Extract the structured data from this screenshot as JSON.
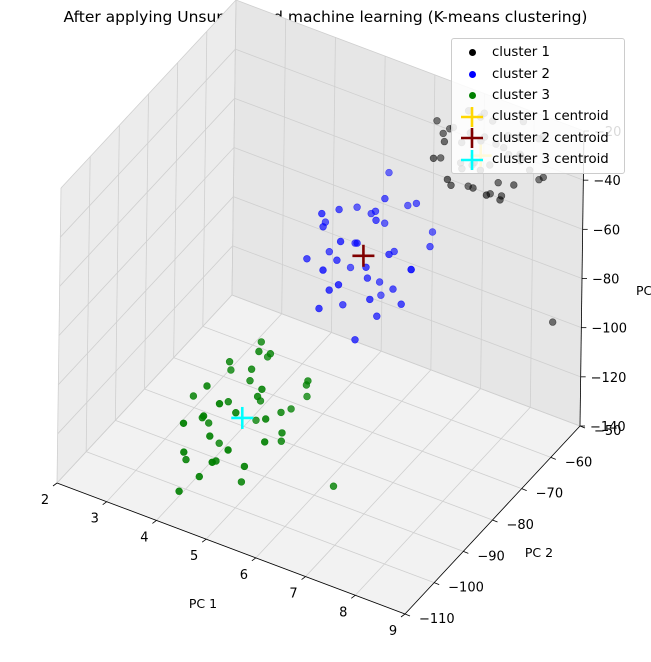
{
  "title": "After applying Unsupervised machine learning (K-means clustering)",
  "chart_data": {
    "type": "scatter",
    "projection": "3d",
    "title": "After applying Unsupervised machine learning (K-means clustering)",
    "xlabel": "PC 1",
    "ylabel": "PC 2",
    "zlabel": "PC",
    "xlim": [
      2,
      9
    ],
    "ylim": [
      -110,
      -50
    ],
    "zlim": [
      -140,
      -20
    ],
    "xticks": [
      "2",
      "3",
      "4",
      "5",
      "6",
      "7",
      "8",
      "9"
    ],
    "yticks": [
      "−50",
      "−60",
      "−70",
      "−80",
      "−90",
      "−100",
      "−110"
    ],
    "zticks": [
      "−20",
      "−40",
      "−60",
      "−80",
      "−100",
      "−120",
      "−140"
    ],
    "legend_position": "top-right",
    "grid": true,
    "series": [
      {
        "name": "cluster 1",
        "marker": "dot",
        "color": "#000000",
        "points": [
          [
            7.1,
            -53,
            -25
          ],
          [
            7.3,
            -55,
            -29
          ],
          [
            7.6,
            -52,
            -30
          ],
          [
            7.8,
            -57,
            -27
          ],
          [
            7.4,
            -58,
            -26
          ],
          [
            7.0,
            -50,
            -28
          ],
          [
            8.0,
            -55,
            -24
          ],
          [
            7.7,
            -60,
            -31
          ],
          [
            6.9,
            -56,
            -33
          ],
          [
            7.5,
            -62,
            -29
          ],
          [
            8.2,
            -58,
            -28
          ],
          [
            7.2,
            -61,
            -35
          ],
          [
            6.8,
            -52,
            -26
          ],
          [
            7.9,
            -53,
            -34
          ],
          [
            8.3,
            -62,
            -32
          ],
          [
            7.0,
            -58,
            -38
          ],
          [
            6.6,
            -55,
            -31
          ],
          [
            7.6,
            -64,
            -36
          ],
          [
            8.1,
            -50,
            -30
          ],
          [
            7.3,
            -51,
            -37
          ],
          [
            6.7,
            -59,
            -27
          ],
          [
            8.4,
            -55,
            -38
          ],
          [
            7.8,
            -65,
            -26
          ],
          [
            7.1,
            -63,
            -40
          ],
          [
            6.5,
            -52,
            -35
          ],
          [
            7.4,
            -54,
            -23
          ],
          [
            8.0,
            -61,
            -40
          ],
          [
            6.9,
            -62,
            -25
          ],
          [
            7.7,
            -57,
            -42
          ],
          [
            8.5,
            -60,
            -27
          ],
          [
            7.2,
            -66,
            -33
          ],
          [
            6.6,
            -58,
            -39
          ],
          [
            7.9,
            -52,
            -22
          ],
          [
            8.2,
            -65,
            -35
          ],
          [
            7.5,
            -50,
            -41
          ],
          [
            6.8,
            -64,
            -30
          ],
          [
            7.0,
            -54,
            -44
          ],
          [
            8.6,
            -57,
            -33
          ],
          [
            7.3,
            -60,
            -21
          ],
          [
            8.3,
            -52,
            -25
          ],
          [
            7.6,
            -58,
            -46
          ],
          [
            6.4,
            -56,
            -28
          ],
          [
            8.1,
            -68,
            -30
          ],
          [
            7.8,
            -51,
            -38
          ],
          [
            7.1,
            -57,
            -48
          ],
          [
            9.0,
            -60,
            -85
          ]
        ]
      },
      {
        "name": "cluster 2",
        "marker": "dot",
        "color": "#0000ff",
        "points": [
          [
            6.0,
            -70,
            -50
          ],
          [
            6.3,
            -75,
            -45
          ],
          [
            5.8,
            -68,
            -55
          ],
          [
            6.5,
            -72,
            -60
          ],
          [
            5.5,
            -74,
            -48
          ],
          [
            6.1,
            -78,
            -52
          ],
          [
            5.9,
            -65,
            -62
          ],
          [
            6.4,
            -80,
            -57
          ],
          [
            5.6,
            -70,
            -66
          ],
          [
            6.7,
            -68,
            -44
          ],
          [
            6.2,
            -76,
            -68
          ],
          [
            5.4,
            -66,
            -58
          ],
          [
            6.0,
            -82,
            -47
          ],
          [
            6.6,
            -74,
            -72
          ],
          [
            5.7,
            -78,
            -62
          ],
          [
            6.3,
            -64,
            -53
          ],
          [
            5.2,
            -72,
            -70
          ],
          [
            6.8,
            -79,
            -50
          ],
          [
            5.9,
            -84,
            -65
          ],
          [
            6.5,
            -66,
            -75
          ],
          [
            5.5,
            -80,
            -42
          ],
          [
            6.1,
            -70,
            -78
          ],
          [
            5.3,
            -76,
            -54
          ],
          [
            6.9,
            -73,
            -63
          ],
          [
            6.2,
            -86,
            -58
          ],
          [
            5.8,
            -62,
            -46
          ],
          [
            6.4,
            -76,
            -82
          ],
          [
            5.0,
            -70,
            -62
          ],
          [
            6.0,
            -88,
            -51
          ],
          [
            6.6,
            -82,
            -66
          ],
          [
            5.4,
            -68,
            -80
          ],
          [
            6.3,
            -72,
            -40
          ],
          [
            5.7,
            -84,
            -74
          ],
          [
            7.1,
            -70,
            -56
          ],
          [
            5.6,
            -74,
            -86
          ],
          [
            6.8,
            -64,
            -60
          ],
          [
            5.1,
            -78,
            -66
          ],
          [
            6.2,
            -80,
            -88
          ],
          [
            7.0,
            -78,
            -70
          ],
          [
            5.9,
            -66,
            -90
          ]
        ]
      },
      {
        "name": "cluster 3",
        "marker": "dot",
        "color": "#008000",
        "points": [
          [
            5.0,
            -95,
            -90
          ],
          [
            5.3,
            -98,
            -95
          ],
          [
            4.8,
            -92,
            -100
          ],
          [
            5.5,
            -100,
            -88
          ],
          [
            4.6,
            -96,
            -105
          ],
          [
            5.1,
            -102,
            -98
          ],
          [
            4.9,
            -90,
            -110
          ],
          [
            5.6,
            -95,
            -103
          ],
          [
            4.4,
            -100,
            -95
          ],
          [
            5.2,
            -92,
            -86
          ],
          [
            4.7,
            -104,
            -108
          ],
          [
            5.4,
            -88,
            -112
          ],
          [
            4.5,
            -94,
            -92
          ],
          [
            5.8,
            -98,
            -106
          ],
          [
            4.3,
            -90,
            -102
          ],
          [
            5.0,
            -106,
            -90
          ],
          [
            5.5,
            -93,
            -118
          ],
          [
            4.2,
            -98,
            -112
          ],
          [
            5.7,
            -102,
            -96
          ],
          [
            4.8,
            -86,
            -98
          ],
          [
            5.3,
            -108,
            -104
          ],
          [
            4.1,
            -94,
            -120
          ],
          [
            5.9,
            -91,
            -93
          ],
          [
            4.6,
            -100,
            -124
          ],
          [
            5.2,
            -96,
            -80
          ],
          [
            4.4,
            -108,
            -100
          ],
          [
            5.6,
            -86,
            -108
          ],
          [
            4.0,
            -100,
            -128
          ],
          [
            5.4,
            -104,
            -115
          ],
          [
            4.9,
            -90,
            -86
          ],
          [
            4.3,
            -106,
            -115
          ],
          [
            5.8,
            -104,
            -102
          ],
          [
            4.7,
            -88,
            -122
          ],
          [
            5.1,
            -110,
            -108
          ],
          [
            4.2,
            -92,
            -130
          ],
          [
            5.7,
            -88,
            -100
          ],
          [
            4.5,
            -104,
            -126
          ],
          [
            5.0,
            -98,
            -132
          ],
          [
            3.9,
            -96,
            -108
          ],
          [
            6.5,
            -92,
            -130
          ],
          [
            4.1,
            -104,
            -135
          ],
          [
            4.8,
            -108,
            -94
          ]
        ]
      },
      {
        "name": "cluster 1 centroid",
        "marker": "plus",
        "color": "#ffd700",
        "points": [
          [
            7.4,
            -58,
            -32
          ]
        ]
      },
      {
        "name": "cluster 2 centroid",
        "marker": "plus",
        "color": "#800000",
        "points": [
          [
            6.0,
            -74,
            -63
          ]
        ]
      },
      {
        "name": "cluster 3 centroid",
        "marker": "plus",
        "color": "#00ffff",
        "points": [
          [
            5.0,
            -98,
            -106
          ]
        ]
      }
    ]
  }
}
